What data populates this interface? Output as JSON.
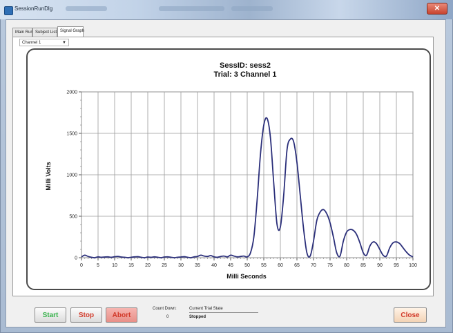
{
  "window": {
    "title": "SessionRunDlg"
  },
  "tabs": [
    {
      "label": "Main Run"
    },
    {
      "label": "Subject List"
    },
    {
      "label": "Signal Graph",
      "active": true
    }
  ],
  "channel_select": {
    "value": "Channel 1"
  },
  "chart_data": {
    "type": "line",
    "title": "SessID: sess2",
    "subtitle": "Trial: 3 Channel 1",
    "xlabel": "Milli Seconds",
    "ylabel": "Milli Volts",
    "xlim": [
      0,
      100
    ],
    "ylim": [
      0,
      2000
    ],
    "xticks": [
      0,
      5,
      10,
      15,
      20,
      25,
      30,
      35,
      40,
      45,
      50,
      55,
      60,
      65,
      70,
      75,
      80,
      85,
      90,
      95,
      100
    ],
    "yticks": [
      0,
      500,
      1000,
      1500,
      2000
    ],
    "grid": true,
    "series": [
      {
        "color": "#2b2f7a",
        "x": [
          0,
          1,
          2,
          3,
          4,
          5,
          6,
          7,
          8,
          9,
          10,
          11,
          12,
          13,
          14,
          15,
          16,
          17,
          18,
          19,
          20,
          21,
          22,
          23,
          24,
          25,
          26,
          27,
          28,
          29,
          30,
          31,
          32,
          33,
          34,
          35,
          36,
          37,
          38,
          39,
          40,
          41,
          42,
          43,
          44,
          45,
          46,
          47,
          48,
          49,
          50,
          51,
          52,
          53,
          54,
          55,
          56,
          57,
          58,
          59,
          60,
          61,
          62,
          63,
          64,
          65,
          66,
          67,
          68,
          69,
          70,
          71,
          72,
          73,
          74,
          75,
          76,
          77,
          78,
          79,
          80,
          81,
          82,
          83,
          84,
          85,
          86,
          87,
          88,
          89,
          90,
          91,
          92,
          93,
          94,
          95,
          96,
          97,
          98,
          99,
          100
        ],
        "y": [
          10,
          30,
          15,
          5,
          0,
          10,
          5,
          8,
          10,
          5,
          12,
          15,
          8,
          5,
          0,
          5,
          10,
          12,
          5,
          0,
          8,
          5,
          10,
          5,
          0,
          8,
          10,
          5,
          0,
          5,
          8,
          12,
          5,
          0,
          10,
          15,
          30,
          20,
          15,
          25,
          10,
          5,
          15,
          20,
          10,
          30,
          20,
          10,
          15,
          20,
          10,
          60,
          250,
          700,
          1250,
          1600,
          1680,
          1450,
          900,
          400,
          370,
          750,
          1300,
          1430,
          1400,
          1150,
          750,
          350,
          60,
          20,
          200,
          450,
          550,
          580,
          530,
          420,
          250,
          60,
          20,
          200,
          310,
          340,
          330,
          280,
          180,
          60,
          30,
          140,
          190,
          170,
          100,
          30,
          20,
          120,
          180,
          190,
          170,
          120,
          70,
          30,
          10
        ]
      }
    ]
  },
  "status": {
    "count_down_label": "Count Down:",
    "count_down_value": "0",
    "trial_state_label": "Current Trial State",
    "trial_state_value": "Stopped"
  },
  "buttons": {
    "start": "Start",
    "stop": "Stop",
    "abort": "Abort",
    "close": "Close"
  },
  "colors": {
    "start_text": "#36b24a",
    "stop_text": "#d23a2a",
    "abort_bg": "#e88f88",
    "close_bg": "#f3d3b5",
    "series": "#2b2f7a"
  }
}
